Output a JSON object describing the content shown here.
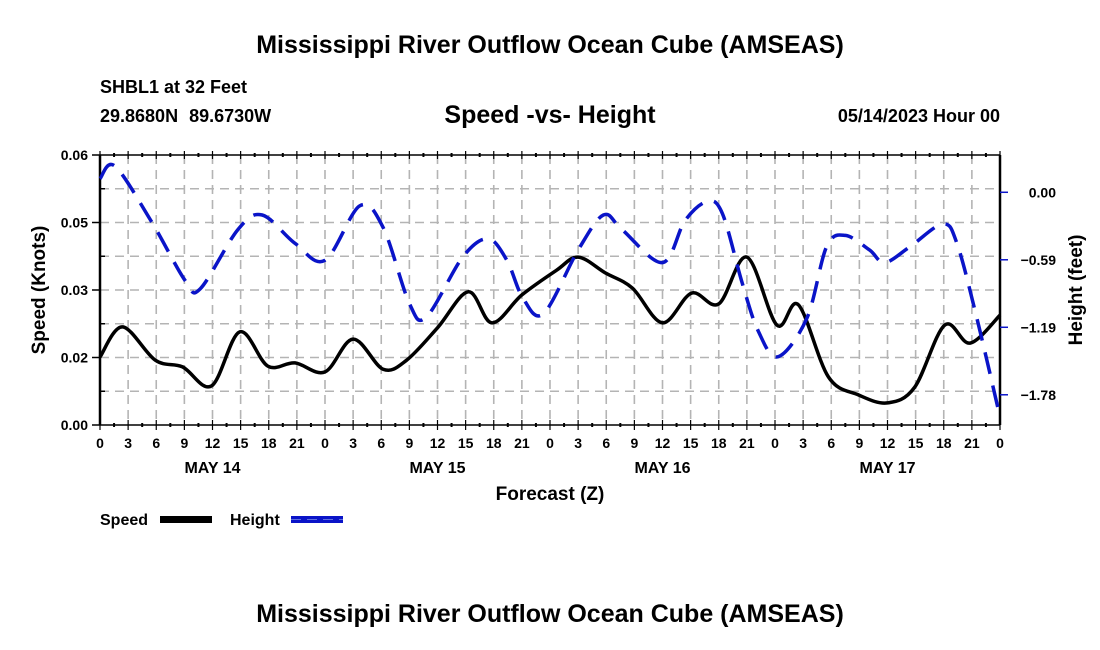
{
  "header": {
    "title": "Mississippi River Outflow Ocean Cube (AMSEAS)",
    "station": "SHBL1 at 32 Feet",
    "coordinates": "29.8680N  89.6730W",
    "subtitle": "Speed -vs- Height",
    "datetime": "05/14/2023 Hour 00"
  },
  "footer": {
    "title": "Mississippi River Outflow Ocean Cube (AMSEAS)"
  },
  "chart_data": {
    "type": "line",
    "title": "Speed -vs- Height",
    "xlabel": "Forecast (Z)",
    "ylabel": "Speed (Knots)",
    "y2label": "Height (feet)",
    "x_unit": "forecast hour",
    "xlim": [
      0,
      96
    ],
    "ylim": [
      0,
      0.06
    ],
    "y2lim_at_ticks": [
      0.0,
      -0.59,
      -1.19,
      -1.78
    ],
    "grid": true,
    "x_ticks": [
      0,
      3,
      6,
      9,
      12,
      15,
      18,
      21,
      24,
      27,
      30,
      33,
      36,
      39,
      42,
      45,
      48,
      51,
      54,
      57,
      60,
      63,
      66,
      69,
      72,
      75,
      78,
      81,
      84,
      87,
      90,
      93,
      96
    ],
    "x_tick_labels": [
      "0",
      "3",
      "6",
      "9",
      "12",
      "15",
      "18",
      "21",
      "0",
      "3",
      "6",
      "9",
      "12",
      "15",
      "18",
      "21",
      "0",
      "3",
      "6",
      "9",
      "12",
      "15",
      "18",
      "21",
      "0",
      "3",
      "6",
      "9",
      "12",
      "15",
      "18",
      "21",
      "0"
    ],
    "day_labels": [
      {
        "label": "MAY 14",
        "center_hour": 12
      },
      {
        "label": "MAY 15",
        "center_hour": 36
      },
      {
        "label": "MAY 16",
        "center_hour": 60
      },
      {
        "label": "MAY 17",
        "center_hour": 84
      }
    ],
    "y_ticks": [
      {
        "value": 0.06,
        "label": "0.06"
      },
      {
        "value": 0.045,
        "label": "0.05"
      },
      {
        "value": 0.03,
        "label": "0.03"
      },
      {
        "value": 0.015,
        "label": "0.02"
      },
      {
        "value": 0.0,
        "label": "0.00"
      }
    ],
    "y2_ticks": [
      {
        "value": 0.0,
        "label": "0.00"
      },
      {
        "value": -0.595,
        "label": "-0.59"
      },
      {
        "value": -1.19,
        "label": "-1.19"
      },
      {
        "value": -1.785,
        "label": "-1.78"
      }
    ],
    "y2_top": 0.3286,
    "y2_bottom": -2.0514,
    "legend": {
      "position": "bottom-left",
      "entries": [
        {
          "name": "Speed",
          "color": "#000000",
          "style": "solid"
        },
        {
          "name": "Height",
          "color": "#0a14c8",
          "style": "dashed"
        }
      ]
    },
    "series": [
      {
        "name": "Speed",
        "axis": "left",
        "color": "#000000",
        "style": "solid",
        "x": [
          0,
          2.4,
          5.9,
          8.8,
          11.9,
          14.9,
          17.9,
          20.8,
          24,
          27,
          30.2,
          32.7,
          36,
          39.3,
          41.8,
          45,
          48.7,
          51,
          53.9,
          56.8,
          60,
          63.1,
          66,
          69,
          72.2,
          74.5,
          77.7,
          80.9,
          84,
          86.9,
          90.1,
          92.8,
          96
        ],
        "values": [
          0.0151,
          0.0218,
          0.0144,
          0.0129,
          0.0087,
          0.0207,
          0.0131,
          0.0138,
          0.0118,
          0.0191,
          0.0124,
          0.0144,
          0.0216,
          0.0296,
          0.0227,
          0.0289,
          0.0344,
          0.0373,
          0.0338,
          0.0304,
          0.0227,
          0.0293,
          0.0269,
          0.0373,
          0.0222,
          0.0267,
          0.0107,
          0.0067,
          0.0049,
          0.0084,
          0.0222,
          0.0182,
          0.0244
        ]
      },
      {
        "name": "Height",
        "axis": "right",
        "color": "#0a14c8",
        "style": "dashed",
        "x": [
          0,
          1.6,
          5.5,
          9.1,
          10.7,
          14.7,
          17.3,
          20.8,
          24,
          27.7,
          30.2,
          33,
          34.8,
          38.7,
          41.4,
          43.4,
          45.1,
          47.3,
          51,
          53.7,
          55.7,
          60,
          62.4,
          64.8,
          66.4,
          68.5,
          70.2,
          72.3,
          75.4,
          77.5,
          79.5,
          82.1,
          83.7,
          86.4,
          89.9,
          91.4,
          93.5,
          96
        ],
        "values": [
          0.12,
          0.23,
          -0.26,
          -0.78,
          -0.85,
          -0.33,
          -0.2,
          -0.45,
          -0.6,
          -0.12,
          -0.31,
          -0.98,
          -1.1,
          -0.57,
          -0.41,
          -0.6,
          -0.93,
          -1.07,
          -0.51,
          -0.2,
          -0.33,
          -0.62,
          -0.25,
          -0.08,
          -0.19,
          -0.8,
          -1.22,
          -1.45,
          -1.11,
          -0.48,
          -0.38,
          -0.51,
          -0.62,
          -0.48,
          -0.28,
          -0.45,
          -1.1,
          -1.98
        ]
      }
    ]
  }
}
